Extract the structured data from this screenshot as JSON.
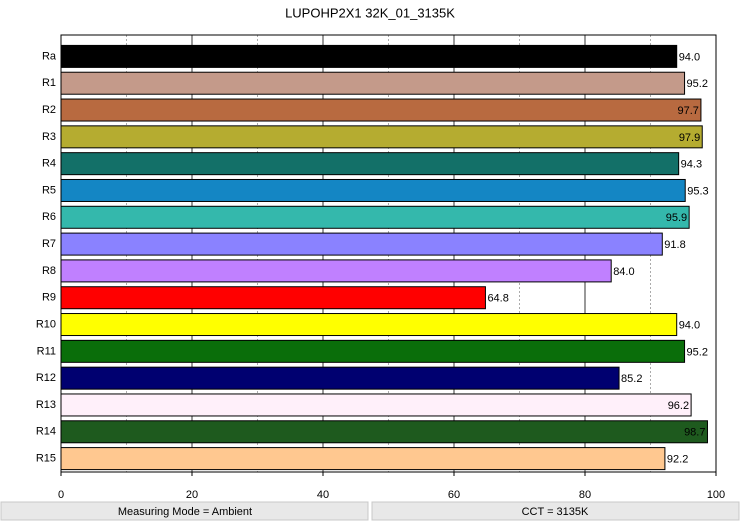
{
  "chart_data": {
    "type": "bar",
    "orientation": "horizontal",
    "title": "LUPOHP2X1 32K_01_3135K",
    "categories": [
      "Ra",
      "R1",
      "R2",
      "R3",
      "R4",
      "R5",
      "R6",
      "R7",
      "R8",
      "R9",
      "R10",
      "R11",
      "R12",
      "R13",
      "R14",
      "R15"
    ],
    "values": [
      94.0,
      95.2,
      97.7,
      97.9,
      94.3,
      95.3,
      95.9,
      91.8,
      84.0,
      64.8,
      94.0,
      95.2,
      85.2,
      96.2,
      98.7,
      92.2
    ],
    "value_labels": [
      "94.0",
      "95.2",
      "97.7",
      "97.9",
      "94.3",
      "95.3",
      "95.9",
      "91.8",
      "84.0",
      "64.8",
      "94.0",
      "95.2",
      "85.2",
      "96.2",
      "98.7",
      "92.2"
    ],
    "colors": [
      "#000000",
      "#c49a8a",
      "#b86a40",
      "#b5ac30",
      "#137068",
      "#1486c4",
      "#34b8ac",
      "#8a82ff",
      "#c080ff",
      "#ff0000",
      "#ffff00",
      "#0a6e0a",
      "#000070",
      "#fff0fa",
      "#1e5a1e",
      "#ffc890"
    ],
    "xlim": [
      0,
      100
    ],
    "xticks": [
      0,
      20,
      40,
      60,
      80,
      100
    ],
    "minor_grid": [
      10,
      30,
      50,
      70,
      90
    ],
    "grid": true
  },
  "footer": [
    "Measuring Mode = Ambient",
    "CCT = 3135K"
  ]
}
